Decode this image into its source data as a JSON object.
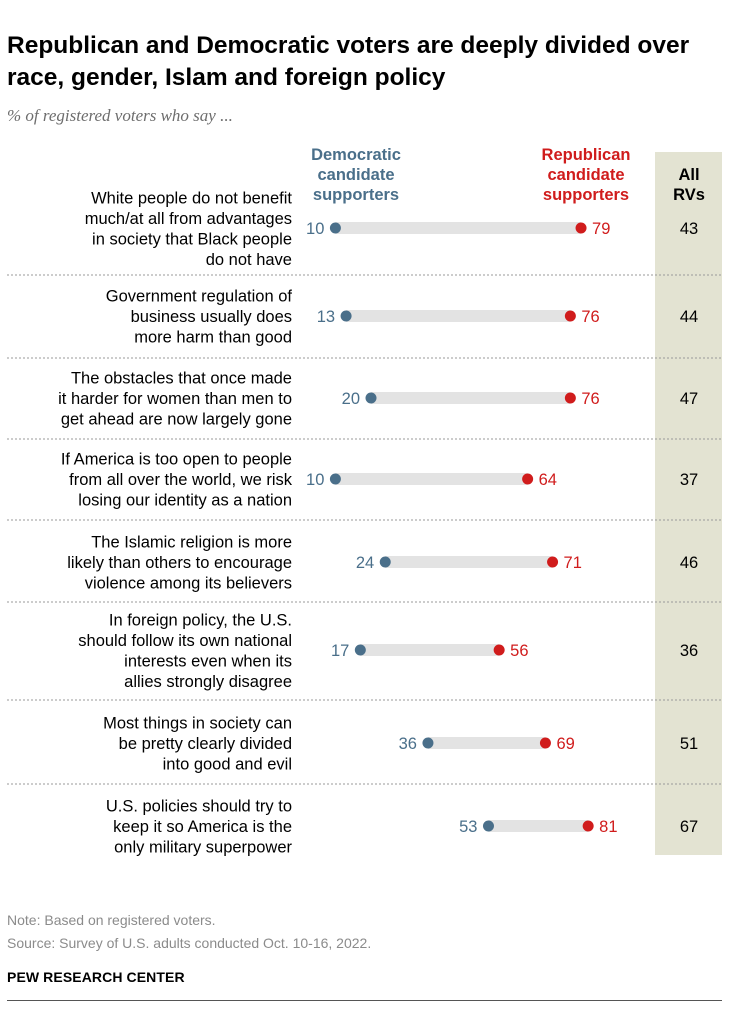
{
  "title": "Republican and Democratic voters are deeply divided over race, gender, Islam and foreign policy",
  "subtitle": "% of registered voters who say ...",
  "colors": {
    "democratic": "#4a6f8a",
    "republican": "#d01c1c",
    "all_rv_band": "#e3e3d2",
    "track": "#e3e3e3",
    "rule": "#9a9a9a"
  },
  "chart_data": {
    "type": "dot",
    "title": "Republican and Democratic voters are deeply divided over race, gender, Islam and foreign policy",
    "xlim": [
      0,
      100
    ],
    "legend": {
      "democratic": [
        "Democratic",
        "candidate",
        "supporters"
      ],
      "republican": [
        "Republican",
        "candidate",
        "supporters"
      ],
      "all_rvs": [
        "All",
        "RVs"
      ]
    },
    "categories": [
      [
        "White people do not benefit",
        "much/at all from advantages",
        "in society that Black people",
        "do not have"
      ],
      [
        "Government regulation of",
        "business usually does",
        "more harm than good"
      ],
      [
        "The obstacles that once made",
        "it harder for women than men to",
        "get ahead are now largely gone"
      ],
      [
        "If America is too open to people",
        "from all over the world, we risk",
        "losing our identity as a nation"
      ],
      [
        "The Islamic religion is more",
        "likely than others to encourage",
        "violence among its believers"
      ],
      [
        "In foreign policy, the U.S.",
        "should follow its own national",
        "interests even when its",
        "allies strongly disagree"
      ],
      [
        "Most things in society can",
        "be pretty clearly divided",
        "into good and evil"
      ],
      [
        "U.S. policies should try to",
        "keep it so America is the",
        "only military superpower"
      ]
    ],
    "series": [
      {
        "name": "Democratic candidate supporters",
        "values": [
          10,
          13,
          20,
          10,
          24,
          17,
          36,
          53
        ]
      },
      {
        "name": "Republican candidate supporters",
        "values": [
          79,
          76,
          76,
          64,
          71,
          56,
          69,
          81
        ]
      },
      {
        "name": "All RVs",
        "values": [
          43,
          44,
          47,
          37,
          46,
          36,
          51,
          67
        ]
      }
    ]
  },
  "footer": {
    "note": "Note: Based on registered voters.",
    "source": "Source: Survey of U.S. adults conducted Oct. 10-16, 2022.",
    "brand": "PEW RESEARCH CENTER"
  }
}
